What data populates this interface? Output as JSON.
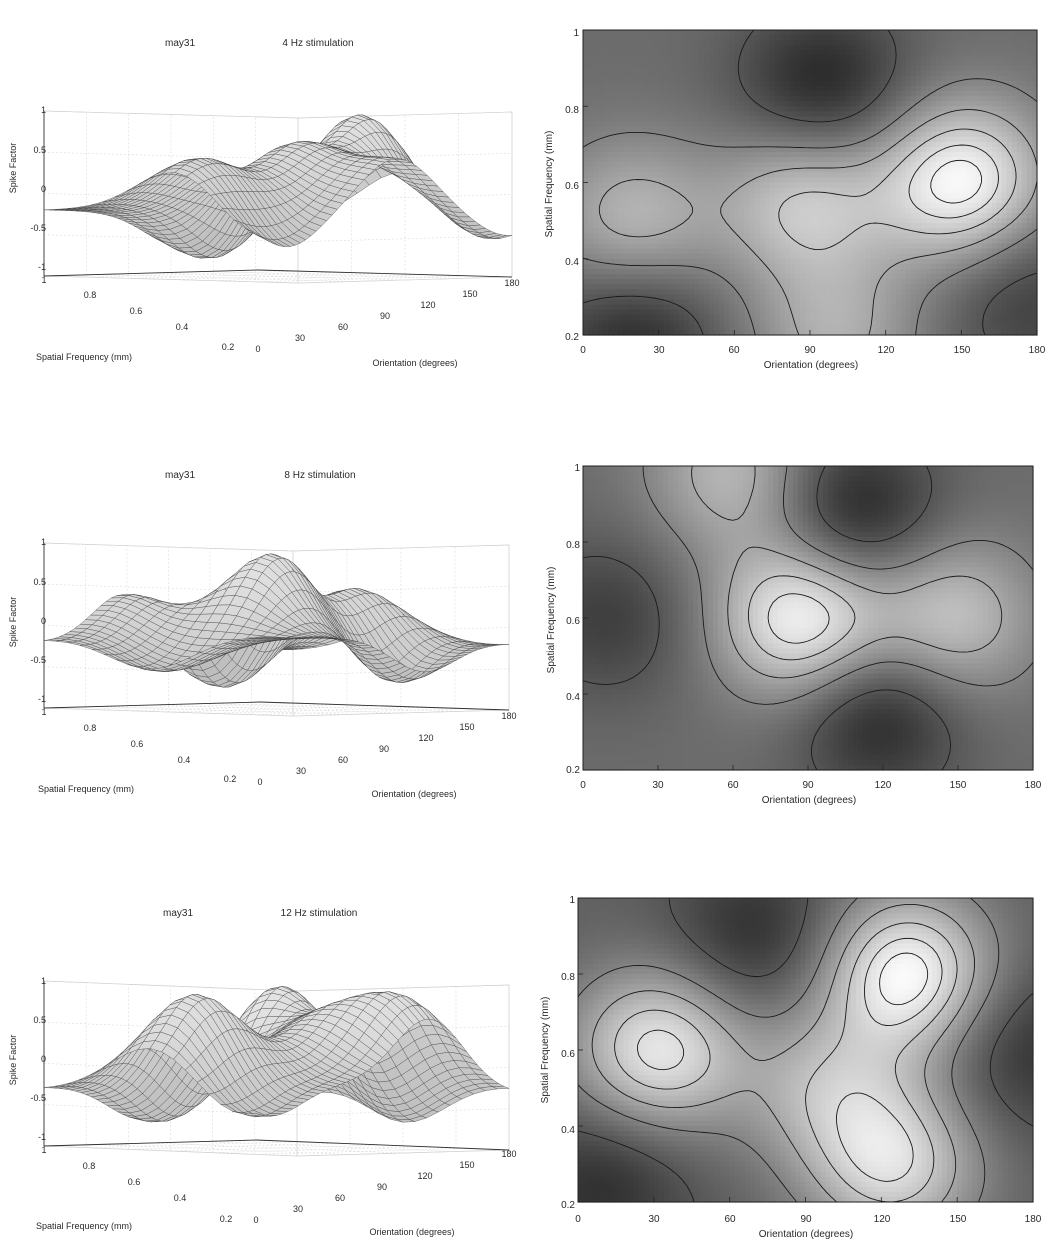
{
  "rows": [
    {
      "surface": {
        "label": "may31",
        "title": "4 Hz stimulation",
        "zlabel": "Spike Factor",
        "xlabel": "Spatial Frequency (mm)",
        "ylabel": "Orientation (degrees)",
        "zticks": [
          "1",
          "0.5",
          "0",
          "-0.5",
          "-1"
        ],
        "sfticks": [
          "1",
          "0.8",
          "0.6",
          "0.4",
          "0.2"
        ],
        "orticks": [
          "0",
          "30",
          "60",
          "90",
          "120",
          "150",
          "180"
        ]
      },
      "contour": {
        "xlabel": "Orientation (degrees)",
        "ylabel": "Spatial Frequency (mm)",
        "xticks": [
          "0",
          "30",
          "60",
          "90",
          "120",
          "150",
          "180"
        ],
        "yticks": [
          "1",
          "0.8",
          "0.6",
          "0.4",
          "0.2"
        ]
      }
    },
    {
      "surface": {
        "label": "may31",
        "title": "8 Hz stimulation",
        "zlabel": "Spike Factor",
        "xlabel": "Spatial Frequency (mm)",
        "ylabel": "Orientation (degrees)",
        "zticks": [
          "1",
          "0.5",
          "0",
          "-0.5",
          "-1"
        ],
        "sfticks": [
          "1",
          "0.8",
          "0.6",
          "0.4",
          "0.2"
        ],
        "orticks": [
          "0",
          "30",
          "60",
          "90",
          "120",
          "150",
          "180"
        ]
      },
      "contour": {
        "xlabel": "Orientation (degrees)",
        "ylabel": "Spatial Frequency (mm)",
        "xticks": [
          "0",
          "30",
          "60",
          "90",
          "120",
          "150",
          "180"
        ],
        "yticks": [
          "1",
          "0.8",
          "0.6",
          "0.4",
          "0.2"
        ]
      }
    },
    {
      "surface": {
        "label": "may31",
        "title": "12 Hz stimulation",
        "zlabel": "Spike Factor",
        "xlabel": "Spatial Frequency (mm)",
        "ylabel": "Orientation (degrees)",
        "zticks": [
          "1",
          "0.5",
          "0",
          "-0.5",
          "-1"
        ],
        "sfticks": [
          "1",
          "0.8",
          "0.6",
          "0.4",
          "0.2"
        ],
        "orticks": [
          "0",
          "30",
          "60",
          "90",
          "120",
          "150",
          "180"
        ]
      },
      "contour": {
        "xlabel": "Orientation (degrees)",
        "ylabel": "Spatial Frequency (mm)",
        "xticks": [
          "0",
          "30",
          "60",
          "90",
          "120",
          "150",
          "180"
        ],
        "yticks": [
          "1",
          "0.8",
          "0.6",
          "0.4",
          "0.2"
        ]
      }
    }
  ],
  "chart_data": [
    {
      "type": "surface",
      "label": "may31",
      "title": "4 Hz stimulation",
      "x_name": "Orientation (degrees)",
      "xlim": [
        0,
        180
      ],
      "y_name": "Spatial Frequency (mm)",
      "ylim": [
        0.2,
        1
      ],
      "z_name": "Spike Factor",
      "zlim": [
        -1,
        1
      ],
      "baseline": -0.2,
      "peaks": [
        {
          "x": 150,
          "y": 0.6,
          "z": 1.0
        },
        {
          "x": 88,
          "y": 0.55,
          "z": 0.6
        },
        {
          "x": 20,
          "y": 0.5,
          "z": 0.45
        },
        {
          "x": 100,
          "y": 0.2,
          "z": 0.35
        }
      ],
      "troughs": [
        {
          "x": 95,
          "y": 0.85,
          "z": -0.85
        },
        {
          "x": 20,
          "y": 0.2,
          "z": -0.8
        },
        {
          "x": 175,
          "y": 0.3,
          "z": -0.6
        }
      ]
    },
    {
      "type": "heatmap",
      "title": "4 Hz stimulation",
      "xlabel": "Orientation (degrees)",
      "xlim": [
        0,
        180
      ],
      "ylabel": "Spatial Frequency (mm)",
      "ylim": [
        0.2,
        1
      ],
      "contours": true,
      "baseline": -0.2,
      "peaks": [
        {
          "x": 150,
          "y": 0.6,
          "z": 1.0
        },
        {
          "x": 88,
          "y": 0.55,
          "z": 0.6
        },
        {
          "x": 20,
          "y": 0.5,
          "z": 0.45
        },
        {
          "x": 100,
          "y": 0.2,
          "z": 0.35
        }
      ],
      "troughs": [
        {
          "x": 95,
          "y": 0.85,
          "z": -0.85
        },
        {
          "x": 20,
          "y": 0.2,
          "z": -0.8
        },
        {
          "x": 175,
          "y": 0.3,
          "z": -0.6
        }
      ]
    },
    {
      "type": "surface",
      "label": "may31",
      "title": "8 Hz stimulation",
      "x_name": "Orientation (degrees)",
      "xlim": [
        0,
        180
      ],
      "y_name": "Spatial Frequency (mm)",
      "ylim": [
        0.2,
        1
      ],
      "z_name": "Spike Factor",
      "zlim": [
        -1,
        1
      ],
      "baseline": -0.2,
      "peaks": [
        {
          "x": 88,
          "y": 0.6,
          "z": 1.0
        },
        {
          "x": 147,
          "y": 0.6,
          "z": 0.55
        },
        {
          "x": 60,
          "y": 0.98,
          "z": 0.45
        }
      ],
      "troughs": [
        {
          "x": 108,
          "y": 0.87,
          "z": -0.9
        },
        {
          "x": 118,
          "y": 0.35,
          "z": -0.85
        },
        {
          "x": 10,
          "y": 0.6,
          "z": -0.6
        }
      ]
    },
    {
      "type": "heatmap",
      "title": "8 Hz stimulation",
      "xlabel": "Orientation (degrees)",
      "xlim": [
        0,
        180
      ],
      "ylabel": "Spatial Frequency (mm)",
      "ylim": [
        0.2,
        1
      ],
      "contours": true,
      "baseline": -0.2,
      "peaks": [
        {
          "x": 88,
          "y": 0.6,
          "z": 1.0
        },
        {
          "x": 147,
          "y": 0.6,
          "z": 0.55
        },
        {
          "x": 60,
          "y": 0.98,
          "z": 0.45
        }
      ],
      "troughs": [
        {
          "x": 108,
          "y": 0.87,
          "z": -0.9
        },
        {
          "x": 118,
          "y": 0.35,
          "z": -0.85
        },
        {
          "x": 10,
          "y": 0.6,
          "z": -0.6
        }
      ]
    },
    {
      "type": "surface",
      "label": "may31",
      "title": "12 Hz stimulation",
      "x_name": "Orientation (degrees)",
      "xlim": [
        0,
        180
      ],
      "y_name": "Spatial Frequency (mm)",
      "ylim": [
        0.2,
        1
      ],
      "z_name": "Spike Factor",
      "zlim": [
        -1,
        1
      ],
      "baseline": -0.3,
      "peaks": [
        {
          "x": 32,
          "y": 0.6,
          "z": 0.85
        },
        {
          "x": 130,
          "y": 0.8,
          "z": 1.0
        },
        {
          "x": 125,
          "y": 0.3,
          "z": 0.7
        },
        {
          "x": 98,
          "y": 0.5,
          "z": 0.35
        }
      ],
      "troughs": [
        {
          "x": 70,
          "y": 0.9,
          "z": -0.75
        },
        {
          "x": 10,
          "y": 0.25,
          "z": -0.75
        },
        {
          "x": 178,
          "y": 0.6,
          "z": -0.7
        }
      ]
    },
    {
      "type": "heatmap",
      "title": "12 Hz stimulation",
      "xlabel": "Orientation (degrees)",
      "xlim": [
        0,
        180
      ],
      "ylabel": "Spatial Frequency (mm)",
      "ylim": [
        0.2,
        1
      ],
      "contours": true,
      "baseline": -0.3,
      "peaks": [
        {
          "x": 32,
          "y": 0.6,
          "z": 0.85
        },
        {
          "x": 130,
          "y": 0.8,
          "z": 1.0
        },
        {
          "x": 125,
          "y": 0.3,
          "z": 0.7
        },
        {
          "x": 98,
          "y": 0.5,
          "z": 0.35
        }
      ],
      "troughs": [
        {
          "x": 70,
          "y": 0.9,
          "z": -0.75
        },
        {
          "x": 10,
          "y": 0.25,
          "z": -0.75
        },
        {
          "x": 178,
          "y": 0.6,
          "z": -0.7
        }
      ]
    }
  ]
}
